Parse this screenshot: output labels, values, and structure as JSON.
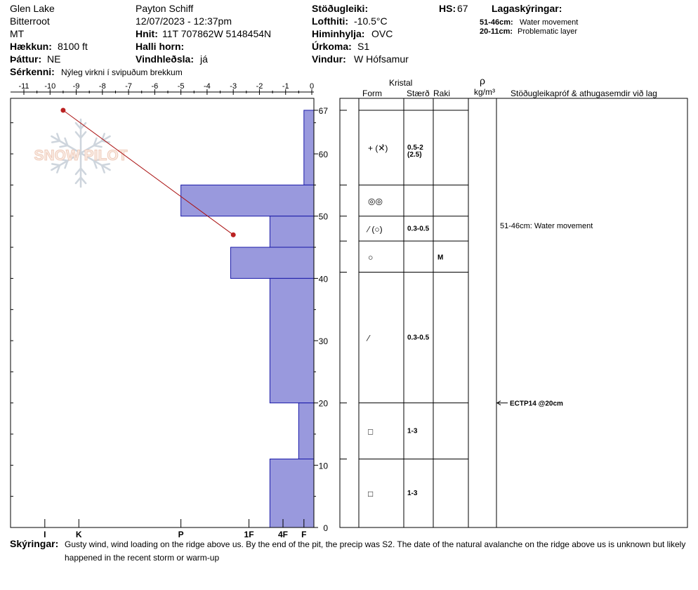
{
  "header": {
    "location": "Glen Lake",
    "range": "Bitterroot",
    "state": "MT",
    "elevation_label": "Hækkun:",
    "elevation_value": "8100 ft",
    "aspect_label": "Þáttur:",
    "aspect_value": "NE",
    "specifics_label": "Sérkenni:",
    "specifics_value": "Nýleg virkni í svipuðum brekkum",
    "observer": "Payton Schiff",
    "datetime": "12/07/2023 - 12:37pm",
    "coords_label": "Hnit:",
    "coords_value": "11T 707862W 5148454N",
    "slope_label": "Halli horn:",
    "slope_value": "",
    "wind_loading_label": "Vindhleðsla:",
    "wind_loading_value": "já",
    "stability_label": "Stöðugleiki:",
    "stability_value": "",
    "air_temp_label": "Lofthiti:",
    "air_temp_value": "-10.5°C",
    "sky_label": "Himinhylja:",
    "sky_value": "OVC",
    "precip_label": "Úrkoma:",
    "precip_value": "S1",
    "wind_label": "Vindur:",
    "wind_value": "W Hófsamur",
    "hs_label": "HS:",
    "hs_value": "67",
    "layer_notes_title": "Lagaskýringar:",
    "layer_notes": [
      {
        "range": "51-46cm:",
        "text": "Water movement"
      },
      {
        "range": "20-11cm:",
        "text": "Problematic layer"
      }
    ]
  },
  "table_headers": {
    "crystal": "Kristal",
    "form": "Form",
    "size": "Stærð",
    "moisture": "Raki",
    "rho": "ρ",
    "density_unit": "kg/m³",
    "tests": "Stöðugleikapróf & athugasemdir við lag"
  },
  "watermark": "SNOW PILOT",
  "footer": {
    "comments_label": "Skýringar:",
    "comments_text": "Gusty wind, wind loading on the ridge above us. By the end of the pit, the precip was S2. The date of the natural avalanche on the ridge above us is unknown but likely happened in the recent storm or warm-up"
  },
  "colors": {
    "hardness_fill": "#9999dd",
    "hardness_stroke": "#1a1aa8",
    "temp_line": "#aa1111",
    "temp_point": "#bb2222"
  },
  "chart_data": {
    "type": "snow_profile",
    "depth_ticks": [
      0,
      10,
      20,
      30,
      40,
      50,
      60,
      67
    ],
    "depth_range": [
      0,
      67
    ],
    "temp_ticks": [
      -11,
      -10,
      -9,
      -8,
      -7,
      -6,
      -5,
      -4,
      -3,
      -2,
      -1,
      0
    ],
    "temp_range": [
      -11.5,
      0
    ],
    "hardness_ticks": [
      {
        "label": "I",
        "temp": -10.2
      },
      {
        "label": "K",
        "temp": -8.9
      },
      {
        "label": "P",
        "temp": -5
      },
      {
        "label": "1F",
        "temp": -2.4
      },
      {
        "label": "4F",
        "temp": -1.1
      },
      {
        "label": "F",
        "temp": -0.3
      }
    ],
    "hardness_layers": [
      {
        "top": 67,
        "bottom": 55,
        "edge_temp": -0.3
      },
      {
        "top": 55,
        "bottom": 50,
        "edge_temp": -5
      },
      {
        "top": 50,
        "bottom": 45,
        "edge_temp": -1.6
      },
      {
        "top": 45,
        "bottom": 40,
        "edge_temp": -3.1
      },
      {
        "top": 40,
        "bottom": 20,
        "edge_temp": -1.6
      },
      {
        "top": 20,
        "bottom": 11,
        "edge_temp": -0.5
      },
      {
        "top": 11,
        "bottom": 0,
        "edge_temp": -1.6
      }
    ],
    "temperature_profile": [
      {
        "depth": 67,
        "temp": -9.5
      },
      {
        "depth": 47,
        "temp": -3
      }
    ],
    "layers": [
      {
        "top": 67,
        "bottom": 55,
        "form": "+ (✕̂)",
        "size": "0.5-2 (2.5)",
        "moisture": ""
      },
      {
        "top": 55,
        "bottom": 50,
        "form": "◎◎",
        "size": "",
        "moisture": ""
      },
      {
        "top": 50,
        "bottom": 46,
        "form": "⁄ (○)",
        "size": "0.3-0.5",
        "moisture": ""
      },
      {
        "top": 46,
        "bottom": 41,
        "form": "○",
        "size": "",
        "moisture": "M"
      },
      {
        "top": 41,
        "bottom": 20,
        "form": "⁄",
        "size": "0.3-0.5",
        "moisture": ""
      },
      {
        "top": 20,
        "bottom": 11,
        "form": "□",
        "size": "1-3",
        "moisture": ""
      },
      {
        "top": 11,
        "bottom": 0,
        "form": "□",
        "size": "1-3",
        "moisture": ""
      }
    ],
    "layer_comments": [
      {
        "depth": 48.5,
        "text": "51-46cm: Water movement"
      }
    ],
    "stability_tests": [
      {
        "depth": 20,
        "text": "ECTP14 @20cm"
      }
    ]
  }
}
